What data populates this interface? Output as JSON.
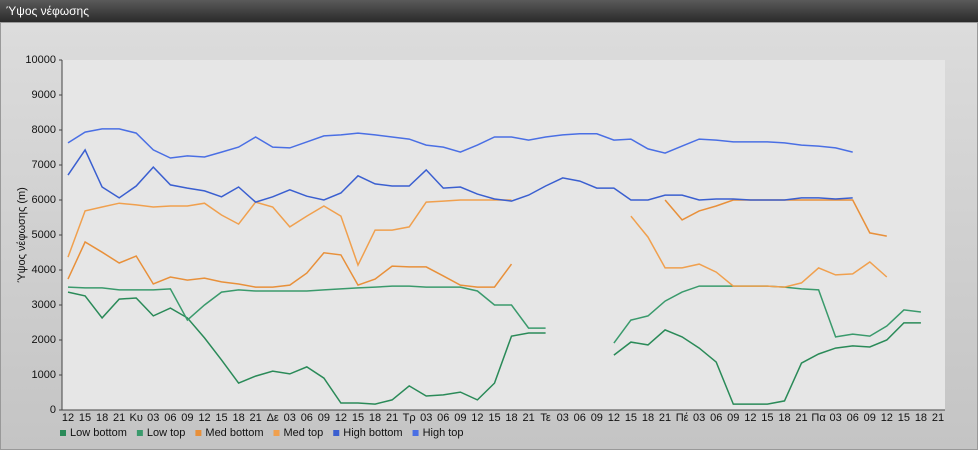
{
  "window_title": "Ύψος νέφωσης",
  "chart_data": {
    "type": "line",
    "y_label": "Ύψος νέφωσης (m)",
    "categories": [
      "12",
      "15",
      "18",
      "21",
      "Κυ",
      "03",
      "06",
      "09",
      "12",
      "15",
      "18",
      "21",
      "Δε",
      "03",
      "06",
      "09",
      "12",
      "15",
      "18",
      "21",
      "Τρ",
      "03",
      "06",
      "09",
      "12",
      "15",
      "18",
      "21",
      "Τε",
      "03",
      "06",
      "09",
      "12",
      "15",
      "18",
      "21",
      "Πέ",
      "03",
      "06",
      "09",
      "12",
      "15",
      "18",
      "21",
      "Πα",
      "03",
      "06",
      "09",
      "12",
      "15",
      "18",
      "21"
    ],
    "ylim": [
      0,
      10000
    ],
    "yticks": [
      0,
      1000,
      2000,
      3000,
      4000,
      5000,
      6000,
      7000,
      8000,
      9000,
      10000
    ],
    "grid": false,
    "legend": "bottom",
    "series": [
      {
        "name": "Low bottom",
        "color": "#2a8a58",
        "values": [
          3370,
          3260,
          2630,
          3170,
          3200,
          2690,
          2910,
          2630,
          2060,
          1430,
          770,
          970,
          1110,
          1030,
          1230,
          910,
          200,
          200,
          170,
          290,
          690,
          400,
          430,
          510,
          290,
          770,
          2110,
          2200,
          2200,
          null,
          null,
          null,
          1570,
          1940,
          1860,
          2290,
          2090,
          1770,
          1370,
          170,
          170,
          170,
          260,
          1340,
          1600,
          1770,
          1830,
          1800,
          2000,
          2490,
          2490,
          null
        ]
      },
      {
        "name": "Low top",
        "color": "#3a9a6c",
        "values": [
          3510,
          3490,
          3490,
          3430,
          3430,
          3430,
          3460,
          2570,
          3000,
          3370,
          3430,
          3400,
          3400,
          3400,
          3400,
          3430,
          3460,
          3490,
          3510,
          3540,
          3540,
          3510,
          3510,
          3510,
          3400,
          3000,
          3000,
          2340,
          2340,
          null,
          null,
          null,
          1910,
          2570,
          2690,
          3110,
          3370,
          3540,
          3540,
          3540,
          3540,
          3540,
          3510,
          3460,
          3430,
          2090,
          2170,
          2110,
          2400,
          2860,
          2800,
          null
        ]
      },
      {
        "name": "Med bottom",
        "color": "#e8903a",
        "values": [
          3740,
          4800,
          4510,
          4200,
          4400,
          3600,
          3800,
          3710,
          3770,
          3660,
          3600,
          3510,
          3510,
          3570,
          3910,
          4490,
          4430,
          3570,
          3740,
          4110,
          4090,
          4090,
          3830,
          3570,
          3510,
          3510,
          4170,
          null,
          null,
          null,
          null,
          null,
          null,
          null,
          null,
          6000,
          5430,
          5690,
          5830,
          6000,
          6000,
          6000,
          6000,
          6000,
          6000,
          6000,
          6000,
          5060,
          4970,
          null,
          null,
          null
        ]
      },
      {
        "name": "Med top",
        "color": "#f0a04e",
        "values": [
          4370,
          5690,
          5800,
          5910,
          5860,
          5800,
          5830,
          5830,
          5910,
          5570,
          5310,
          5940,
          5800,
          5230,
          5540,
          5830,
          5540,
          4140,
          5140,
          5140,
          5230,
          5940,
          5970,
          6000,
          6000,
          6000,
          6000,
          null,
          null,
          null,
          null,
          null,
          null,
          5540,
          4940,
          4060,
          4060,
          4170,
          3940,
          3540,
          3540,
          3540,
          3510,
          3630,
          4060,
          3860,
          3890,
          4230,
          3800,
          null,
          null,
          null
        ]
      },
      {
        "name": "High bottom",
        "color": "#3a5fd0",
        "values": [
          6710,
          7430,
          6370,
          6060,
          6400,
          6940,
          6430,
          6340,
          6260,
          6090,
          6370,
          5940,
          6090,
          6290,
          6110,
          6000,
          6200,
          6690,
          6460,
          6400,
          6400,
          6860,
          6340,
          6370,
          6170,
          6030,
          5970,
          6140,
          6400,
          6630,
          6540,
          6340,
          6340,
          6000,
          6000,
          6140,
          6140,
          6000,
          6030,
          6030,
          6000,
          6000,
          6000,
          6060,
          6060,
          6030,
          6060,
          null,
          null,
          null,
          null,
          null
        ]
      },
      {
        "name": "High top",
        "color": "#4a6fe4",
        "values": [
          7630,
          7940,
          8030,
          8030,
          7910,
          7430,
          7200,
          7260,
          7230,
          7370,
          7510,
          7800,
          7510,
          7490,
          7660,
          7830,
          7860,
          7910,
          7860,
          7800,
          7740,
          7570,
          7510,
          7370,
          7570,
          7800,
          7800,
          7710,
          7800,
          7860,
          7890,
          7890,
          7710,
          7740,
          7460,
          7340,
          7540,
          7740,
          7710,
          7660,
          7660,
          7660,
          7630,
          7570,
          7540,
          7490,
          7370,
          null,
          null,
          null,
          null,
          null
        ]
      }
    ]
  }
}
